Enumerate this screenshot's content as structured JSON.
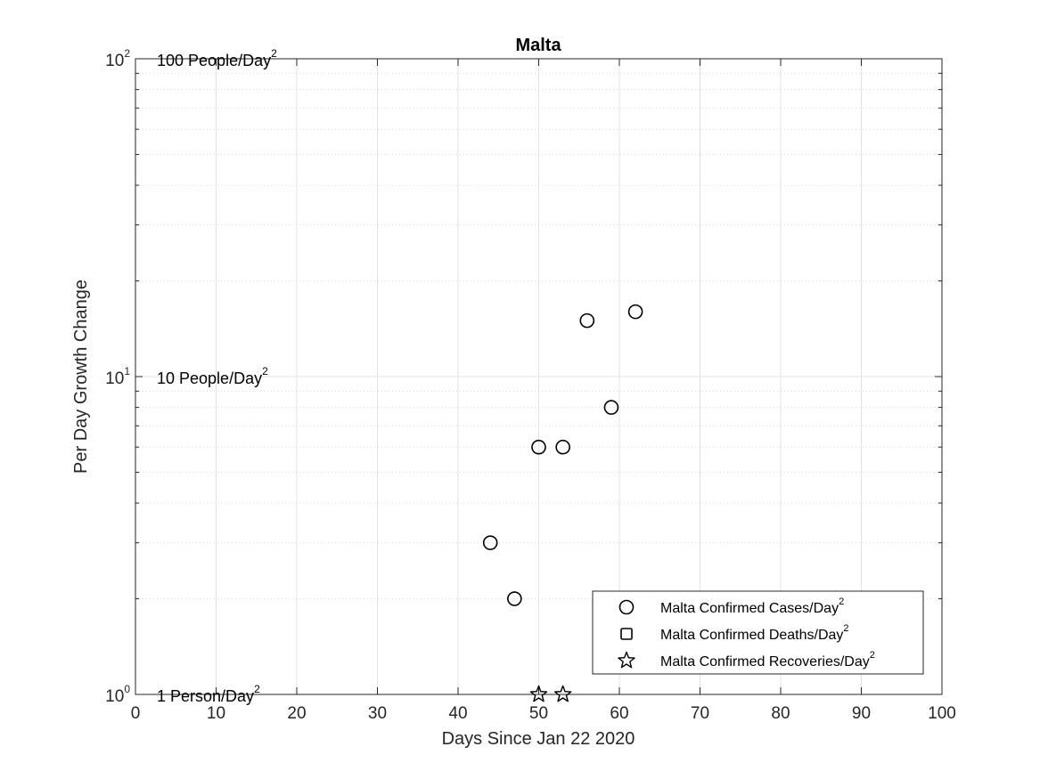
{
  "chart_data": {
    "type": "scatter",
    "title": "Malta",
    "xlabel": "Days Since Jan 22 2020",
    "ylabel": "Per Day Growth Change",
    "xlim": [
      0,
      100
    ],
    "ylim": [
      1,
      100
    ],
    "yscale": "log",
    "grid": true,
    "x_ticks": [
      0,
      10,
      20,
      30,
      40,
      50,
      60,
      70,
      80,
      90,
      100
    ],
    "y_ticks": [
      {
        "value": 1,
        "base": "10",
        "exp": "0"
      },
      {
        "value": 10,
        "base": "10",
        "exp": "1"
      },
      {
        "value": 100,
        "base": "10",
        "exp": "2"
      }
    ],
    "annotations": [
      {
        "y": 100,
        "text": "100 People/Day",
        "sup": "2"
      },
      {
        "y": 10,
        "text": "10 People/Day",
        "sup": "2"
      },
      {
        "y": 1,
        "text": "1 Person/Day",
        "sup": "2"
      }
    ],
    "legend_position": "bottom-right",
    "series": [
      {
        "name": "Malta Confirmed Cases/Day",
        "sup": "2",
        "marker": "circle",
        "points": [
          [
            44,
            3
          ],
          [
            47,
            2
          ],
          [
            50,
            6
          ],
          [
            53,
            6
          ],
          [
            56,
            15
          ],
          [
            59,
            8
          ],
          [
            62,
            16
          ]
        ]
      },
      {
        "name": "Malta Confirmed Deaths/Day",
        "sup": "2",
        "marker": "square",
        "points": []
      },
      {
        "name": "Malta Confirmed Recoveries/Day",
        "sup": "2",
        "marker": "star",
        "points": [
          [
            50,
            1
          ],
          [
            53,
            1
          ]
        ]
      }
    ]
  }
}
